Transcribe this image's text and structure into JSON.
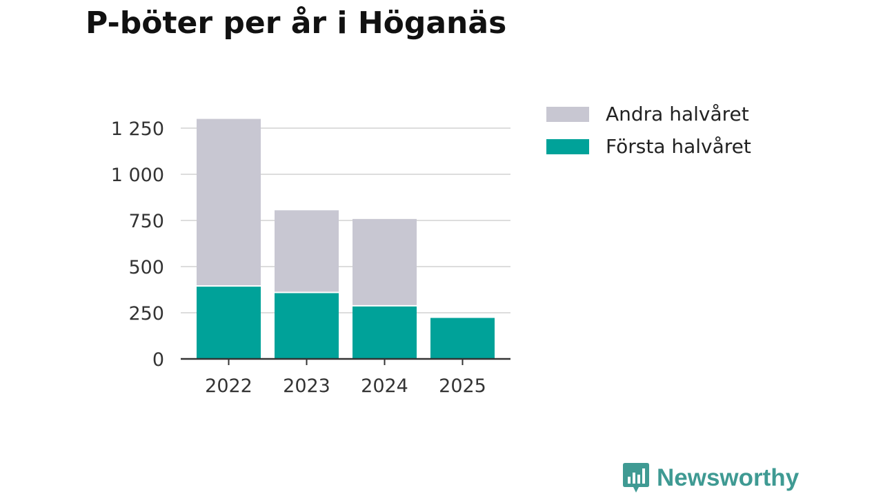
{
  "chart_data": {
    "type": "bar",
    "stacked": true,
    "title": "P-böter per år i Höganäs",
    "categories": [
      "2022",
      "2023",
      "2024",
      "2025"
    ],
    "series": [
      {
        "name": "Första halvåret",
        "color": "#00a299",
        "values": [
          395,
          360,
          288,
          222
        ]
      },
      {
        "name": "Andra halvåret",
        "color": "#c8c7d2",
        "values": [
          905,
          445,
          470,
          0
        ]
      }
    ],
    "y_ticks": [
      0,
      250,
      500,
      750,
      1000,
      1250
    ],
    "y_tick_labels": [
      "0",
      "250",
      "500",
      "750",
      "1 000",
      "1 250"
    ],
    "ylim": [
      0,
      1300
    ],
    "xlabel": "",
    "ylabel": "",
    "legend_position": "top-right"
  },
  "brand": {
    "name": "Newsworthy",
    "color": "#3f9a93"
  }
}
